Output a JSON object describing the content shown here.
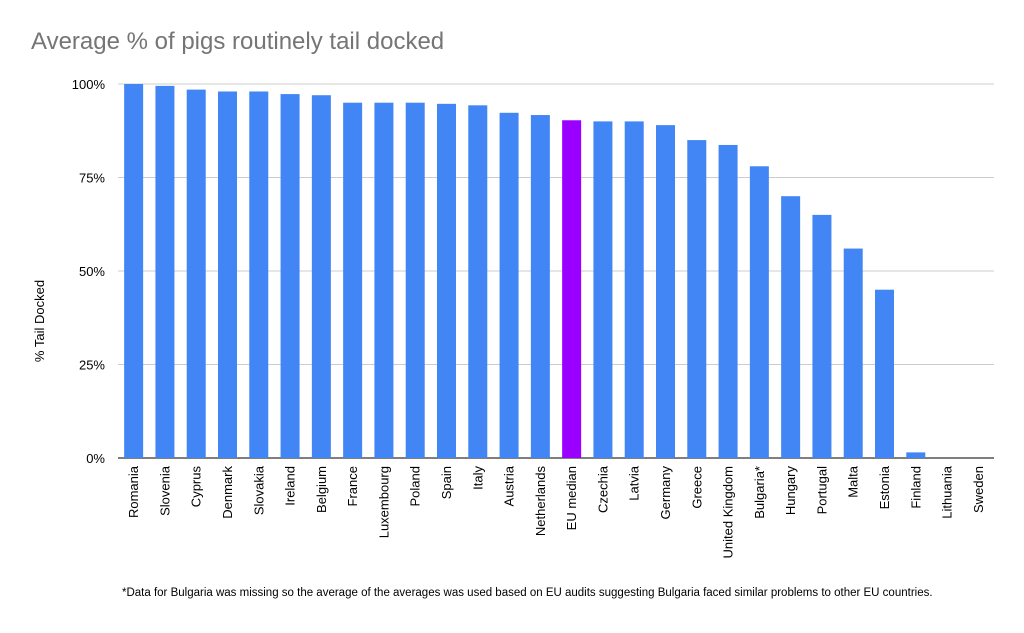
{
  "chart_data": {
    "type": "bar",
    "title": "Average % of pigs routinely tail docked",
    "ylabel": "% Tail Docked",
    "xlabel": "",
    "ylim": [
      0,
      100
    ],
    "yticks": [
      0,
      25,
      50,
      75,
      100
    ],
    "ytick_labels": [
      "0%",
      "25%",
      "50%",
      "75%",
      "100%"
    ],
    "grid": true,
    "categories": [
      "Romania",
      "Slovenia",
      "Cyprus",
      "Denmark",
      "Slovakia",
      "Ireland",
      "Belgium",
      "France",
      "Luxembourg",
      "Poland",
      "Spain",
      "Italy",
      "Austria",
      "Netherlands",
      "EU median",
      "Czechia",
      "Latvia",
      "Germany",
      "Greece",
      "United Kingdom",
      "Bulgaria*",
      "Hungary",
      "Portugal",
      "Malta",
      "Estonia",
      "Finland",
      "Lithuania",
      "Sweden"
    ],
    "values": [
      100,
      99.5,
      98.5,
      98,
      98,
      97.3,
      97,
      95,
      95,
      95,
      94.7,
      94.3,
      92.3,
      91.7,
      90.3,
      90,
      90,
      89,
      85,
      83.7,
      78,
      70,
      65,
      56,
      45,
      1.5,
      0,
      0
    ],
    "colors": {
      "bar": "#4285f4",
      "highlight": "#9900ff",
      "highlight_category": "EU median",
      "grid": "#cccccc",
      "axis": "#333333"
    },
    "footnote": "*Data for Bulgaria was missing so the average of the averages was used based on EU audits suggesting Bulgaria faced similar problems to other EU countries."
  }
}
